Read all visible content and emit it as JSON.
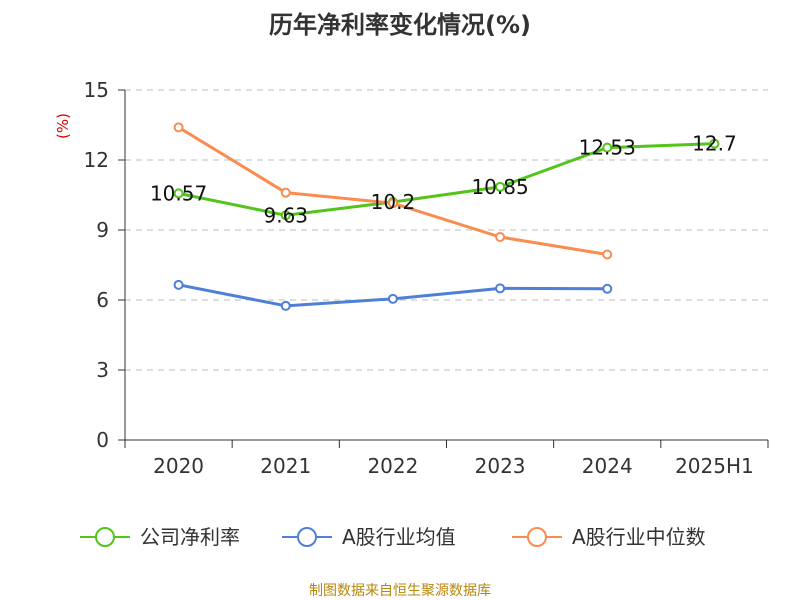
{
  "chart_data": {
    "type": "line",
    "title": "历年净利率变化情况(%)",
    "ylabel": "(%)",
    "xlabel": "",
    "categories": [
      "2020",
      "2021",
      "2022",
      "2023",
      "2024",
      "2025H1"
    ],
    "ylim": [
      0,
      15
    ],
    "yticks": [
      "0",
      "3",
      "6",
      "9",
      "12",
      "15"
    ],
    "grid": true,
    "legend_position": "bottom",
    "series": [
      {
        "name": "公司净利率",
        "color": "#52c41a",
        "values": [
          10.57,
          9.63,
          10.2,
          10.85,
          12.53,
          12.7
        ],
        "labels": [
          "10.57",
          "9.63",
          "10.2",
          "10.85",
          "12.53",
          "12.7"
        ]
      },
      {
        "name": "A股行业均值",
        "color": "#4e7fd9",
        "values": [
          6.65,
          5.75,
          6.05,
          6.5,
          6.48,
          null
        ],
        "labels": null
      },
      {
        "name": "A股行业中位数",
        "color": "#fa8c4f",
        "values": [
          13.4,
          10.6,
          10.15,
          8.7,
          7.95,
          null
        ],
        "labels": null
      }
    ],
    "source": "制图数据来自恒生聚源数据库"
  }
}
